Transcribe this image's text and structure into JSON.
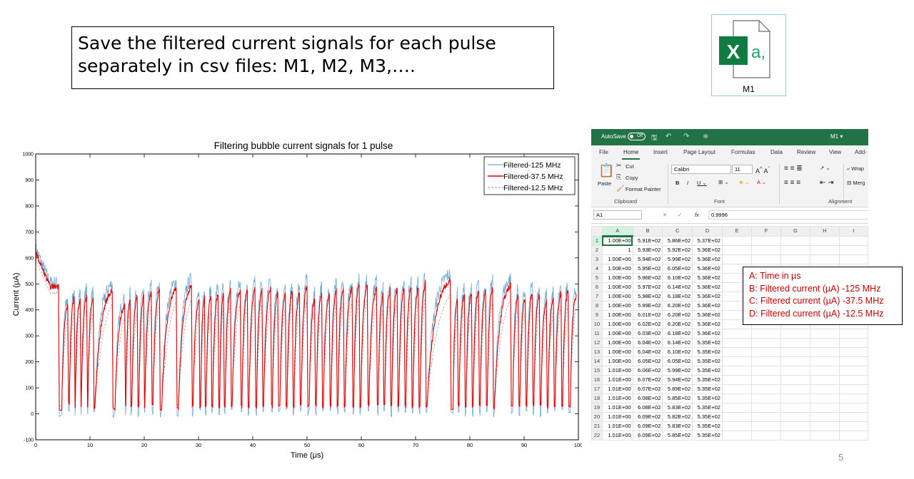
{
  "slide": {
    "title_lines": [
      "Save the filtered current signals for each pulse",
      "separately in csv files: M1, M2, M3,…."
    ],
    "page_number": "5"
  },
  "file_icon": {
    "label": "M1",
    "icon": "excel-file-icon",
    "badge": "X",
    "suffix": "a,",
    "color": "#107c41"
  },
  "column_legend": [
    "A: Time in µs",
    "B: Filtered current (µA) -125 MHz",
    "C: Filtered current (µA) -37.5 MHz",
    "D: Filtered current (µA) -12.5 MHz"
  ],
  "excel": {
    "autosave_label": "AutoSave",
    "autosave_state": "Off",
    "file_name": "M1 ▾",
    "tabs": [
      "File",
      "Home",
      "Insert",
      "Page Layout",
      "Formulas",
      "Data",
      "Review",
      "View",
      "Add-"
    ],
    "active_tab": "Home",
    "clipboard": {
      "paste": "Paste",
      "cut": "Cut",
      "copy": "Copy",
      "format_painter": "Format Painter",
      "group": "Clipboard"
    },
    "font": {
      "name": "Calibri",
      "size": "11",
      "group": "Font"
    },
    "alignment": {
      "wrap": "Wrap",
      "merge": "Merg",
      "group": "Alignment"
    },
    "name_box": "A1",
    "formula_value": "0.9996",
    "fx": "fx",
    "columns": [
      "A",
      "B",
      "C",
      "D",
      "E",
      "F",
      "G",
      "H",
      "I"
    ],
    "rows": [
      [
        "1",
        "1.00E+00",
        "5.91E+02",
        "5.86E+02",
        "5.37E+02"
      ],
      [
        "2",
        "1",
        "5.93E+02",
        "5.92E+02",
        "5.36E+02"
      ],
      [
        "3",
        "1.00E+00",
        "5.94E+02",
        "5.99E+02",
        "5.36E+02"
      ],
      [
        "4",
        "1.00E+00",
        "5.95E+02",
        "6.05E+02",
        "5.36E+02"
      ],
      [
        "5",
        "1.00E+00",
        "5.96E+02",
        "6.10E+02",
        "5.36E+02"
      ],
      [
        "6",
        "1.00E+00",
        "5.97E+02",
        "6.14E+02",
        "5.36E+02"
      ],
      [
        "7",
        "1.00E+00",
        "5.98E+02",
        "6.18E+02",
        "5.36E+02"
      ],
      [
        "8",
        "1.00E+00",
        "5.99E+02",
        "6.20E+02",
        "5.36E+02"
      ],
      [
        "9",
        "1.00E+00",
        "6.01E+02",
        "6.20E+02",
        "5.36E+02"
      ],
      [
        "10",
        "1.00E+00",
        "6.02E+02",
        "6.20E+02",
        "5.36E+02"
      ],
      [
        "11",
        "1.00E+00",
        "6.03E+02",
        "6.18E+02",
        "5.36E+02"
      ],
      [
        "12",
        "1.00E+00",
        "6.04E+02",
        "6.14E+02",
        "5.35E+02"
      ],
      [
        "13",
        "1.00E+00",
        "6.04E+02",
        "6.10E+02",
        "5.35E+02"
      ],
      [
        "14",
        "1.00E+00",
        "6.05E+02",
        "6.05E+02",
        "5.35E+02"
      ],
      [
        "15",
        "1.01E+00",
        "6.06E+02",
        "5.99E+02",
        "5.35E+02"
      ],
      [
        "16",
        "1.01E+00",
        "6.07E+02",
        "5.94E+02",
        "5.35E+02"
      ],
      [
        "17",
        "1.01E+00",
        "6.07E+02",
        "5.89E+02",
        "5.35E+02"
      ],
      [
        "18",
        "1.01E+00",
        "6.08E+02",
        "5.85E+02",
        "5.35E+02"
      ],
      [
        "19",
        "1.01E+00",
        "6.08E+02",
        "5.83E+02",
        "5.35E+02"
      ],
      [
        "20",
        "1.01E+00",
        "6.09E+02",
        "5.82E+02",
        "5.35E+02"
      ],
      [
        "21",
        "1.01E+00",
        "6.09E+02",
        "5.83E+02",
        "5.35E+02"
      ],
      [
        "22",
        "1.01E+00",
        "6.09E+02",
        "5.85E+02",
        "5.35E+02"
      ]
    ],
    "accent": "#217346"
  },
  "chart_data": {
    "type": "line",
    "title": "Filtering bubble current signals for 1 pulse",
    "xlabel": "Time (μs)",
    "ylabel": "Current (μA)",
    "xlim": [
      0,
      100
    ],
    "ylim": [
      -100,
      1000
    ],
    "xticks": [
      "0",
      "10",
      "20",
      "30",
      "40",
      "50",
      "60",
      "70",
      "80",
      "90",
      "100"
    ],
    "yticks": [
      "-100",
      "0",
      "100",
      "200",
      "300",
      "400",
      "500",
      "600",
      "700",
      "800",
      "900",
      "1000"
    ],
    "legend_position": "top-right",
    "series": [
      {
        "name": "Filtered-125 MHz",
        "color": "#6fa8d6",
        "style": "solid"
      },
      {
        "name": "Filtered-37.5 MHz",
        "color": "#e00000",
        "style": "solid"
      },
      {
        "name": "Filtered-12.5 MHz",
        "color": "#9a9a9a",
        "style": "dashed"
      }
    ],
    "pulses": [
      [
        0.0,
        4.2,
        620,
        490
      ],
      [
        4.8,
        5.9,
        440,
        20
      ],
      [
        6.2,
        7.1,
        470,
        40
      ],
      [
        7.3,
        8.2,
        470,
        30
      ],
      [
        8.4,
        9.4,
        480,
        30
      ],
      [
        9.6,
        10.6,
        470,
        30
      ],
      [
        10.9,
        14.1,
        500,
        20
      ],
      [
        14.6,
        16.4,
        440,
        20
      ],
      [
        16.6,
        17.4,
        460,
        30
      ],
      [
        17.7,
        18.7,
        470,
        30
      ],
      [
        19.0,
        19.9,
        480,
        30
      ],
      [
        20.1,
        21.3,
        490,
        30
      ],
      [
        21.6,
        22.8,
        500,
        30
      ],
      [
        23.2,
        25.9,
        510,
        20
      ],
      [
        26.3,
        28.7,
        520,
        25
      ],
      [
        29.0,
        30.1,
        460,
        30
      ],
      [
        30.4,
        31.1,
        470,
        30
      ],
      [
        31.4,
        32.3,
        480,
        30
      ],
      [
        32.6,
        33.6,
        490,
        30
      ],
      [
        33.9,
        34.6,
        490,
        30
      ],
      [
        34.9,
        35.9,
        500,
        30
      ],
      [
        36.2,
        37.7,
        500,
        30
      ],
      [
        38.0,
        39.0,
        500,
        30
      ],
      [
        39.3,
        40.4,
        510,
        30
      ],
      [
        40.7,
        41.7,
        500,
        30
      ],
      [
        42.0,
        43.3,
        510,
        30
      ],
      [
        43.6,
        44.6,
        490,
        30
      ],
      [
        45.0,
        46.0,
        490,
        30
      ],
      [
        46.3,
        47.3,
        500,
        30
      ],
      [
        47.6,
        48.6,
        490,
        30
      ],
      [
        48.9,
        50.0,
        520,
        30
      ],
      [
        50.4,
        51.4,
        460,
        30
      ],
      [
        51.7,
        52.7,
        490,
        30
      ],
      [
        53.0,
        54.1,
        480,
        30
      ],
      [
        54.4,
        55.4,
        500,
        30
      ],
      [
        55.7,
        56.7,
        510,
        30
      ],
      [
        57.0,
        58.3,
        510,
        30
      ],
      [
        58.6,
        59.6,
        530,
        30
      ],
      [
        59.9,
        61.1,
        520,
        30
      ],
      [
        61.4,
        62.8,
        510,
        30
      ],
      [
        63.1,
        64.0,
        480,
        30
      ],
      [
        64.3,
        65.3,
        500,
        30
      ],
      [
        65.6,
        66.6,
        510,
        30
      ],
      [
        66.9,
        67.9,
        510,
        30
      ],
      [
        68.2,
        69.2,
        520,
        30
      ],
      [
        69.5,
        70.5,
        510,
        30
      ],
      [
        70.8,
        71.8,
        530,
        30
      ],
      [
        72.1,
        76.4,
        540,
        30
      ],
      [
        76.9,
        77.7,
        460,
        20
      ],
      [
        78.0,
        79.0,
        480,
        30
      ],
      [
        79.3,
        80.3,
        490,
        30
      ],
      [
        80.6,
        81.6,
        500,
        30
      ],
      [
        81.9,
        82.9,
        500,
        30
      ],
      [
        83.2,
        84.2,
        510,
        30
      ],
      [
        84.5,
        87.5,
        520,
        20
      ],
      [
        87.9,
        88.9,
        480,
        30
      ],
      [
        89.2,
        90.2,
        470,
        30
      ],
      [
        90.5,
        91.5,
        490,
        30
      ],
      [
        91.8,
        92.8,
        480,
        30
      ],
      [
        93.1,
        94.1,
        460,
        30
      ],
      [
        94.4,
        95.4,
        470,
        30
      ],
      [
        95.7,
        96.8,
        490,
        30
      ],
      [
        97.1,
        98.1,
        500,
        30
      ],
      [
        98.5,
        99.6,
        480,
        30
      ]
    ]
  }
}
